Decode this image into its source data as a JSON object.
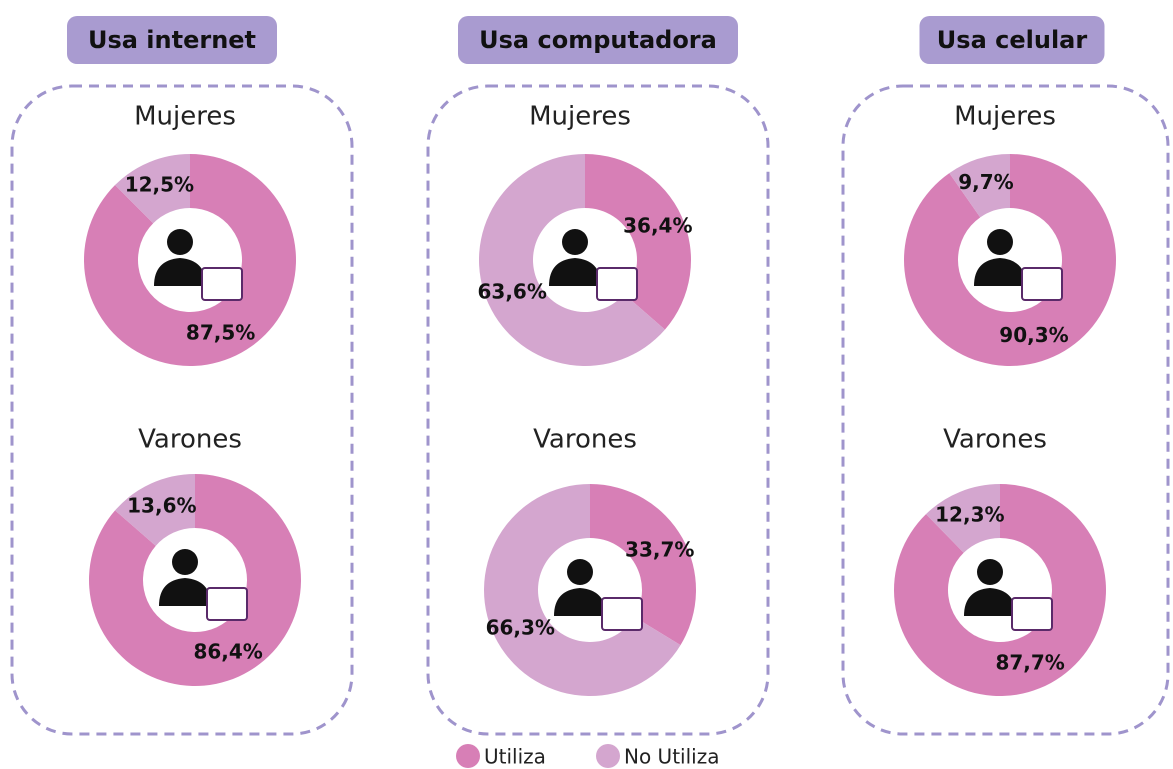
{
  "panels": [
    "Usa internet",
    "Usa computadora",
    "Usa celular"
  ],
  "chart_data": [
    {
      "type": "pie",
      "title": "Mujeres",
      "categories": [
        "Utiliza",
        "No Utiliza"
      ],
      "values": [
        87.5,
        12.5
      ],
      "value_labels": [
        "87,5%",
        "12,5%"
      ],
      "colors": [
        "#d77fb6",
        "#d4a6cf"
      ]
    },
    {
      "type": "pie",
      "title": "Varones",
      "categories": [
        "Utiliza",
        "No Utiliza"
      ],
      "values": [
        86.4,
        13.6
      ],
      "value_labels": [
        "86,4%",
        "13,6%"
      ],
      "colors": [
        "#d77fb6",
        "#d4a6cf"
      ]
    },
    {
      "type": "pie",
      "title": "Mujeres",
      "categories": [
        "Utiliza",
        "No Utiliza"
      ],
      "values": [
        36.4,
        63.6
      ],
      "value_labels": [
        "36,4%",
        "63,6%"
      ],
      "colors": [
        "#d77fb6",
        "#d4a6cf"
      ]
    },
    {
      "type": "pie",
      "title": "Varones",
      "categories": [
        "Utiliza",
        "No Utiliza"
      ],
      "values": [
        33.7,
        66.3
      ],
      "value_labels": [
        "33,7%",
        "66,3%"
      ],
      "colors": [
        "#d77fb6",
        "#d4a6cf"
      ]
    },
    {
      "type": "pie",
      "title": "Mujeres",
      "categories": [
        "Utiliza",
        "No Utiliza"
      ],
      "values": [
        90.3,
        9.7
      ],
      "value_labels": [
        "90,3%",
        "9,7%"
      ],
      "colors": [
        "#d77fb6",
        "#d4a6cf"
      ]
    },
    {
      "type": "pie",
      "title": "Varones",
      "categories": [
        "Utiliza",
        "No Utiliza"
      ],
      "values": [
        87.7,
        12.3
      ],
      "value_labels": [
        "87,7%",
        "12,3%"
      ],
      "colors": [
        "#d77fb6",
        "#d4a6cf"
      ]
    }
  ]
}
